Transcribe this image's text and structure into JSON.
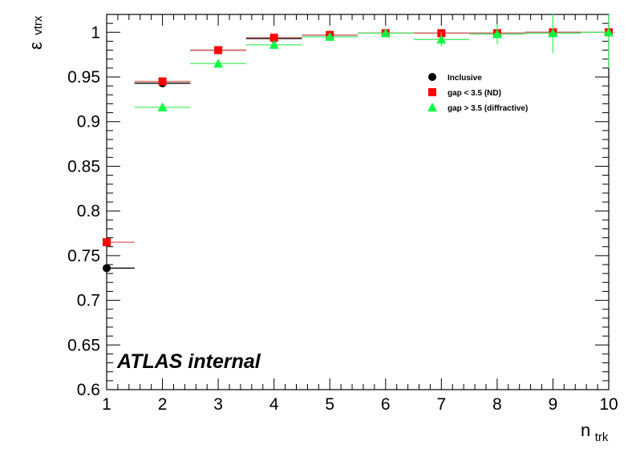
{
  "chart_data": {
    "type": "scatter",
    "title": "",
    "xlabel_main": "n",
    "xlabel_sub": "trk",
    "ylabel_main": "ε",
    "ylabel_sub": "vtrx",
    "xlim": [
      1,
      10
    ],
    "ylim": [
      0.6,
      1.02
    ],
    "x_ticks": [
      1,
      2,
      3,
      4,
      5,
      6,
      7,
      8,
      9,
      10
    ],
    "x_tick_labels": [
      "1",
      "2",
      "3",
      "4",
      "5",
      "6",
      "7",
      "8",
      "9",
      "10"
    ],
    "y_ticks": [
      0.6,
      0.65,
      0.7,
      0.75,
      0.8,
      0.85,
      0.9,
      0.95,
      1.0
    ],
    "y_tick_labels": [
      "0.6",
      "0.65",
      "0.7",
      "0.75",
      "0.8",
      "0.85",
      "0.9",
      "0.95",
      "1"
    ],
    "grid": false,
    "legend_position": "top-right",
    "annotation": "ATLAS internal",
    "series": [
      {
        "name": "Inclusive",
        "marker": "circle",
        "color": "#000000",
        "x": [
          1,
          2,
          3,
          4,
          5,
          6,
          7,
          8,
          9,
          10
        ],
        "y": [
          0.736,
          0.943,
          0.98,
          0.993,
          0.997,
          0.999,
          0.999,
          0.999,
          1.0,
          1.0
        ],
        "x_err": [
          [
            0,
            0.5
          ],
          [
            0.5,
            0.5
          ],
          [
            0.5,
            0.5
          ],
          [
            0.5,
            0.5
          ],
          [
            0.5,
            0.5
          ],
          [
            0.5,
            0.5
          ],
          [
            0.5,
            0.5
          ],
          [
            0.5,
            0.5
          ],
          [
            0.5,
            0.5
          ],
          [
            0.5,
            0
          ]
        ],
        "y_err": [
          0.004,
          0.002,
          0.0015,
          0.001,
          0.001,
          0.001,
          0.001,
          0.001,
          0.001,
          0.001
        ]
      },
      {
        "name": "gap < 3.5 (ND)",
        "marker": "square",
        "color": "#ff0000",
        "x": [
          1,
          2,
          3,
          4,
          5,
          6,
          7,
          8,
          9,
          10
        ],
        "y": [
          0.765,
          0.945,
          0.98,
          0.994,
          0.997,
          0.999,
          0.999,
          0.999,
          1.0,
          1.0
        ],
        "x_err": [
          [
            0,
            0.5
          ],
          [
            0.5,
            0.5
          ],
          [
            0.5,
            0.5
          ],
          [
            0.5,
            0.5
          ],
          [
            0.5,
            0.5
          ],
          [
            0.5,
            0.5
          ],
          [
            0.5,
            0.5
          ],
          [
            0.5,
            0.5
          ],
          [
            0.5,
            0.5
          ],
          [
            0.5,
            0
          ]
        ],
        "y_err": [
          0.004,
          0.002,
          0.0015,
          0.001,
          0.001,
          0.001,
          0.001,
          0.001,
          0.001,
          0.001
        ]
      },
      {
        "name": "gap > 3.5 (diffractive)",
        "marker": "triangle",
        "color": "#00ff44",
        "x": [
          2,
          3,
          4,
          5,
          6,
          7,
          8,
          9,
          10
        ],
        "y": [
          0.916,
          0.965,
          0.986,
          0.995,
          0.999,
          0.992,
          0.998,
          0.999,
          1.0
        ],
        "x_err": [
          [
            0.5,
            0.5
          ],
          [
            0.5,
            0.5
          ],
          [
            0.5,
            0.5
          ],
          [
            0.5,
            0.5
          ],
          [
            0.5,
            0.5
          ],
          [
            0.5,
            0.5
          ],
          [
            0.5,
            0.5
          ],
          [
            0.5,
            0.5
          ],
          [
            0.5,
            0
          ]
        ],
        "y_err": [
          0.004,
          0.003,
          0.003,
          0.004,
          0.002,
          0.008,
          0.011,
          0.022,
          0.04
        ]
      }
    ]
  }
}
